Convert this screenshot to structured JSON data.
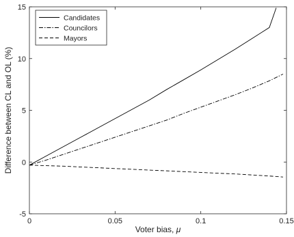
{
  "chart_data": {
    "type": "line",
    "title": "",
    "xlabel": "Voter bias, ",
    "xlabel_symbol": "μ",
    "ylabel": "Difference between CL and OL (%)",
    "xlim": [
      0,
      0.15
    ],
    "ylim": [
      -5,
      15
    ],
    "xticks": [
      0,
      0.05,
      0.1,
      0.15
    ],
    "xtick_labels": [
      "0",
      "0.05",
      "0.1",
      "0.15"
    ],
    "yticks": [
      -5,
      0,
      5,
      10,
      15
    ],
    "ytick_labels": [
      "-5",
      "0",
      "5",
      "10",
      "15"
    ],
    "grid": false,
    "legend_position": "top-left",
    "series": [
      {
        "name": "Candidates",
        "line_style": "solid",
        "color": "#000000",
        "x": [
          0,
          0.01,
          0.02,
          0.03,
          0.04,
          0.05,
          0.06,
          0.07,
          0.08,
          0.09,
          0.1,
          0.11,
          0.12,
          0.13,
          0.14,
          0.144
        ],
        "y": [
          -0.3,
          0.6,
          1.5,
          2.4,
          3.3,
          4.2,
          5.1,
          6.0,
          7.0,
          7.95,
          8.9,
          9.9,
          10.9,
          11.95,
          13.0,
          14.9
        ]
      },
      {
        "name": "Councilors",
        "line_style": "dashdot",
        "color": "#000000",
        "x": [
          0,
          0.01,
          0.02,
          0.03,
          0.04,
          0.05,
          0.06,
          0.07,
          0.08,
          0.09,
          0.1,
          0.11,
          0.12,
          0.13,
          0.14,
          0.148
        ],
        "y": [
          -0.3,
          0.2,
          0.75,
          1.3,
          1.85,
          2.4,
          2.95,
          3.5,
          4.05,
          4.7,
          5.3,
          5.9,
          6.5,
          7.15,
          7.85,
          8.5
        ]
      },
      {
        "name": "Mayors",
        "line_style": "dashed",
        "color": "#000000",
        "x": [
          0,
          0.01,
          0.02,
          0.03,
          0.04,
          0.05,
          0.06,
          0.07,
          0.08,
          0.09,
          0.1,
          0.11,
          0.12,
          0.13,
          0.14,
          0.148
        ],
        "y": [
          -0.3,
          -0.35,
          -0.4,
          -0.48,
          -0.55,
          -0.63,
          -0.7,
          -0.78,
          -0.85,
          -0.93,
          -1.0,
          -1.08,
          -1.15,
          -1.25,
          -1.35,
          -1.45
        ]
      }
    ]
  }
}
